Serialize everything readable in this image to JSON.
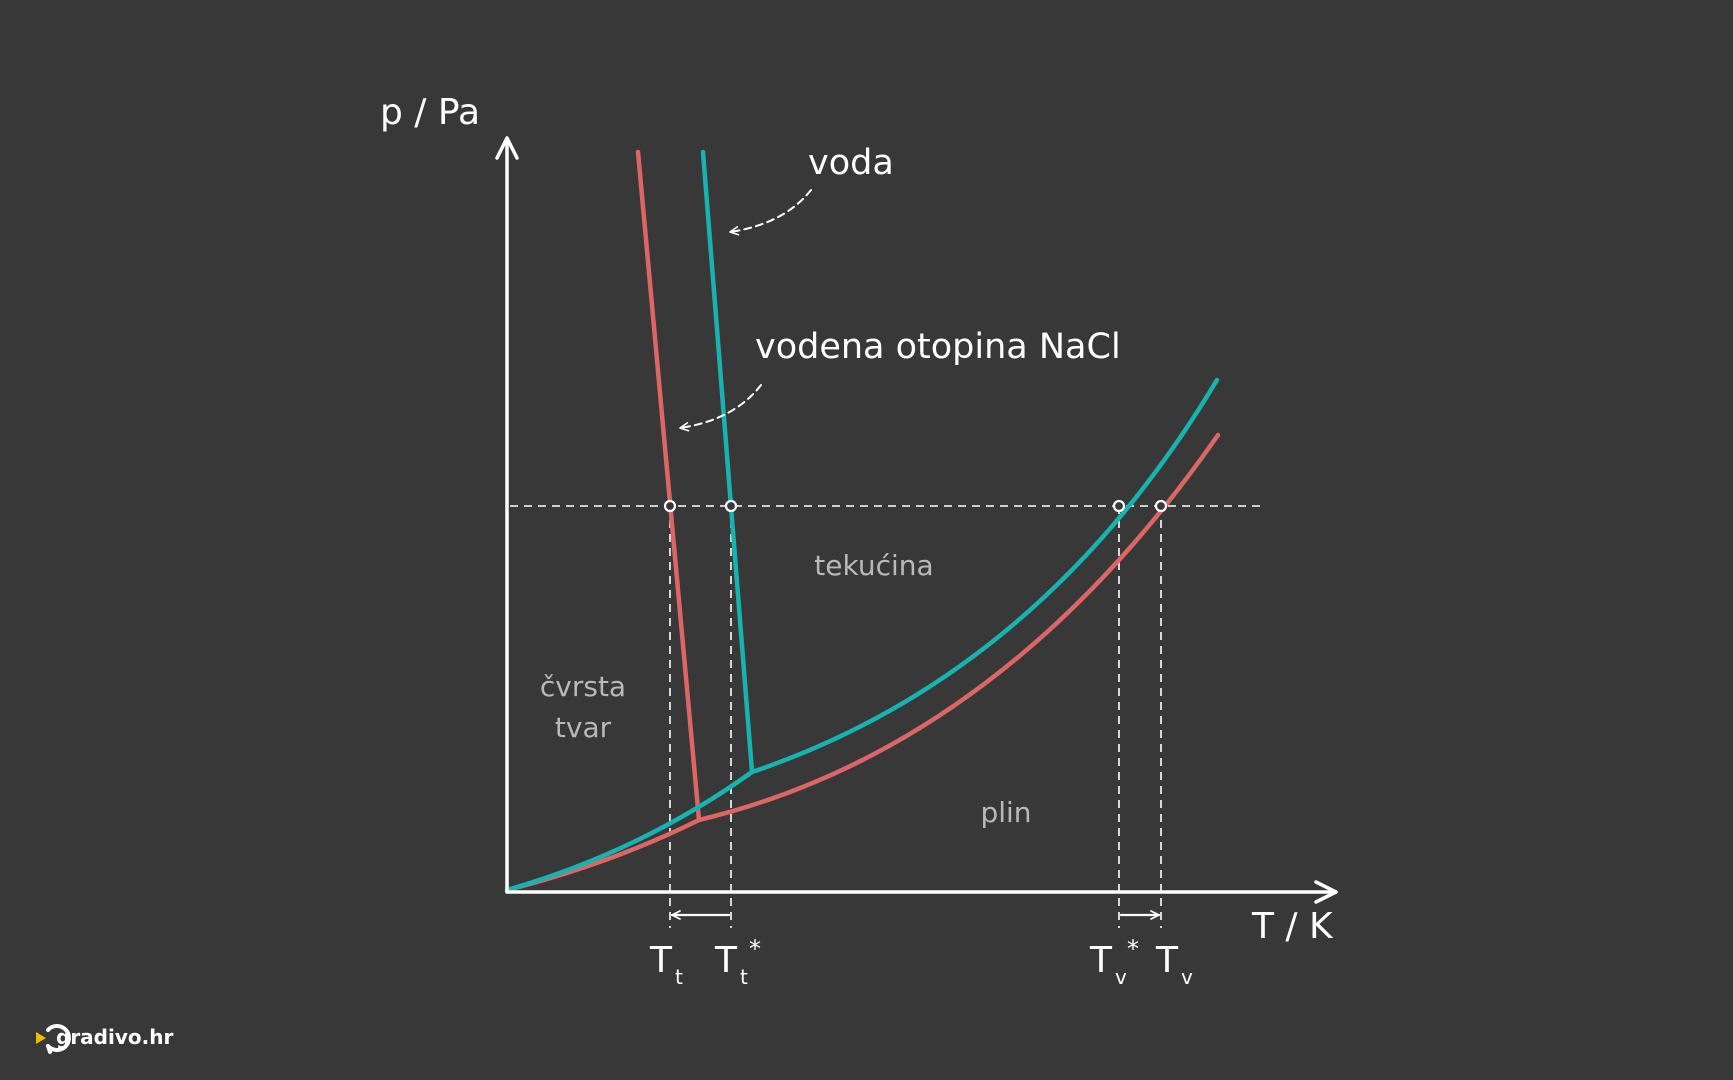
{
  "axes": {
    "y_label": "p / Pa",
    "x_label": "T / K"
  },
  "curves": {
    "water": {
      "label": "voda",
      "color": "#16B3B1"
    },
    "nacl_solution": {
      "label": "vodena otopina NaCl",
      "color": "#DC6666"
    }
  },
  "regions": {
    "solid_line1": "čvrsta",
    "solid_line2": "tvar",
    "liquid": "tekućina",
    "gas": "plin"
  },
  "x_marks": {
    "t_freeze_solution": {
      "main": "T",
      "sub": "t",
      "sup": ""
    },
    "t_freeze_water": {
      "main": "T",
      "sub": "t",
      "sup": "*"
    },
    "t_boil_water": {
      "main": "T",
      "sub": "v",
      "sup": "*"
    },
    "t_boil_solution": {
      "main": "T",
      "sub": "v",
      "sup": ""
    }
  },
  "colors": {
    "background": "#383838",
    "axis": "#FFFFFF",
    "logo_accent": "#F5B800"
  },
  "logo": {
    "text": "gradivo.hr"
  }
}
